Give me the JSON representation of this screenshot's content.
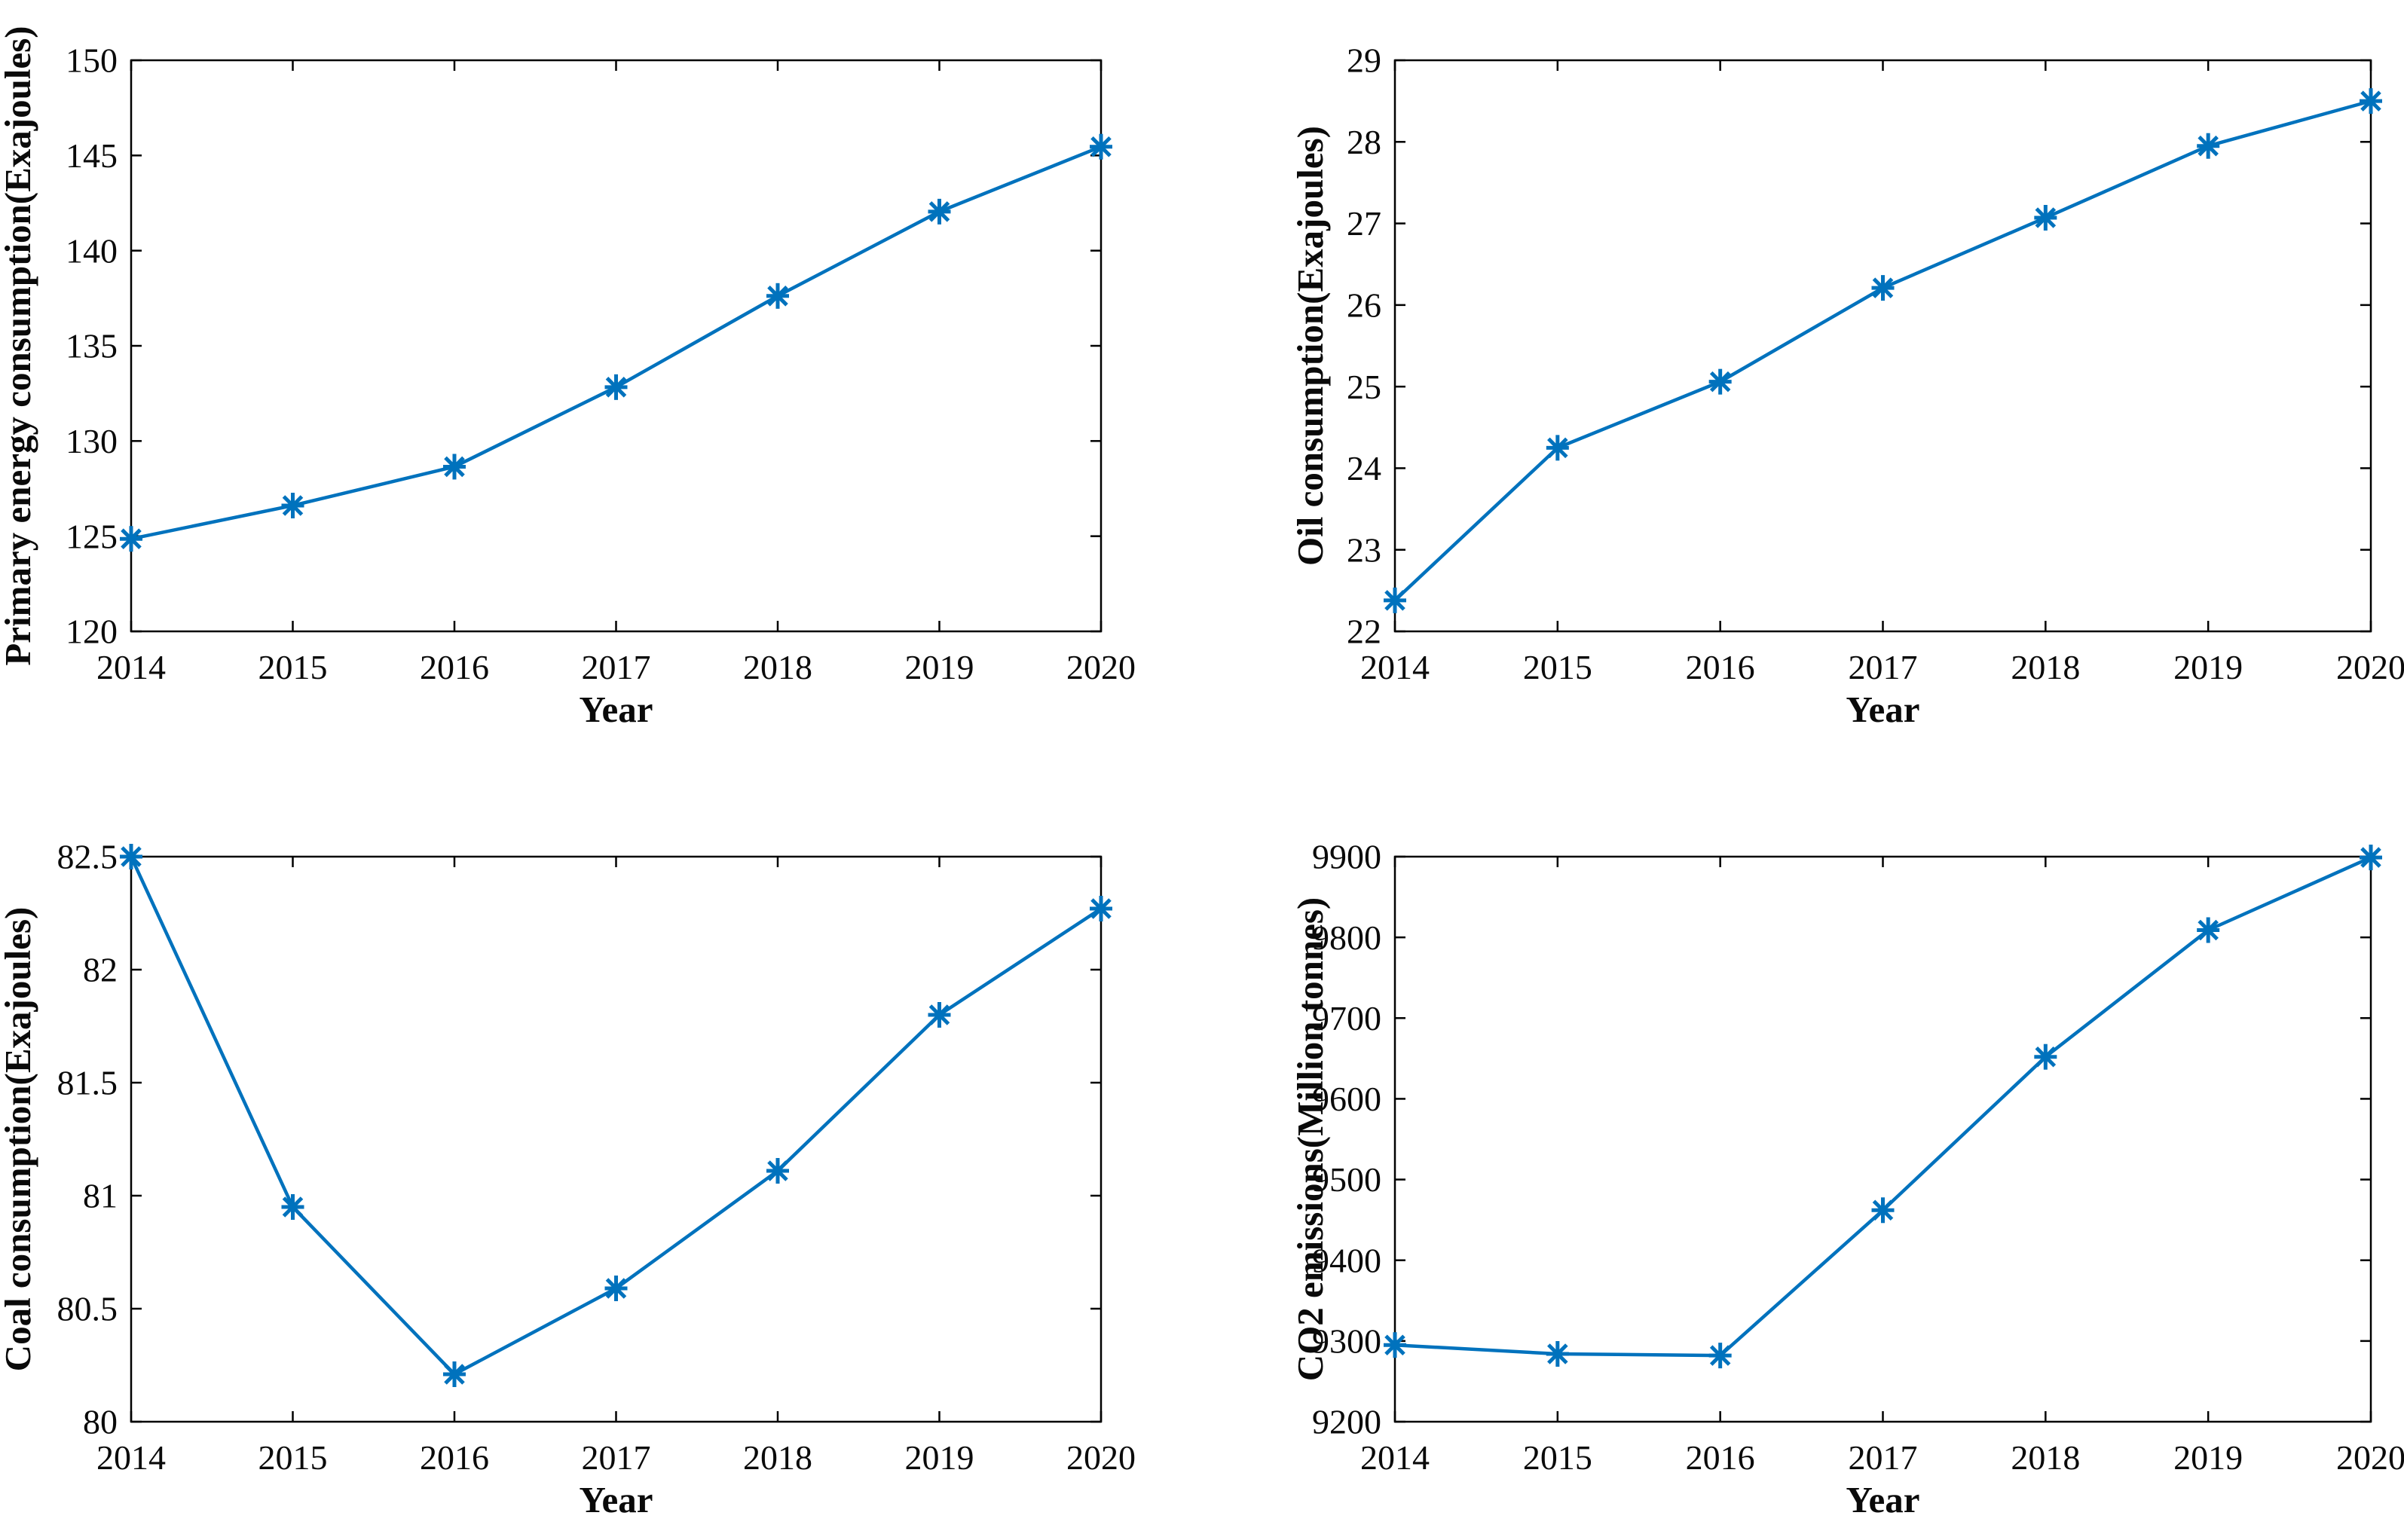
{
  "figure": {
    "layout": "2x2 subplots",
    "background": "#ffffff",
    "axis_color": "#000000",
    "accent_line_color": "#0072BD",
    "marker_style": "asterisk"
  },
  "chart_data": [
    {
      "id": "primary-energy",
      "type": "line",
      "title": "",
      "xlabel": "Year",
      "ylabel": "Primary energy consumption(Exajoules)",
      "x": [
        2014,
        2015,
        2016,
        2017,
        2018,
        2019,
        2020
      ],
      "values": [
        124.86,
        126.61,
        128.65,
        132.83,
        137.62,
        142.05,
        145.46
      ],
      "xticks": [
        2014,
        2015,
        2016,
        2017,
        2018,
        2019,
        2020
      ],
      "yticks": [
        120,
        125,
        130,
        135,
        140,
        145,
        150
      ],
      "xlim": [
        2014,
        2020
      ],
      "ylim": [
        120,
        150
      ],
      "grid": false,
      "legend": null,
      "line_color": "#0072BD",
      "marker": "*"
    },
    {
      "id": "oil",
      "type": "line",
      "title": "",
      "xlabel": "Year",
      "ylabel": "Oil consumption(Exajoules)",
      "x": [
        2014,
        2015,
        2016,
        2017,
        2018,
        2019,
        2020
      ],
      "values": [
        22.38,
        24.25,
        25.06,
        26.21,
        27.07,
        27.95,
        28.5
      ],
      "xticks": [
        2014,
        2015,
        2016,
        2017,
        2018,
        2019,
        2020
      ],
      "yticks": [
        22,
        23,
        24,
        25,
        26,
        27,
        28,
        29
      ],
      "xlim": [
        2014,
        2020
      ],
      "ylim": [
        22,
        29
      ],
      "grid": false,
      "legend": null,
      "line_color": "#0072BD",
      "marker": "*"
    },
    {
      "id": "coal",
      "type": "line",
      "title": "",
      "xlabel": "Year",
      "ylabel": "Coal consumption(Exajoules)",
      "x": [
        2014,
        2015,
        2016,
        2017,
        2018,
        2019,
        2020
      ],
      "values": [
        82.5,
        80.95,
        80.21,
        80.59,
        81.11,
        81.8,
        82.27
      ],
      "xticks": [
        2014,
        2015,
        2016,
        2017,
        2018,
        2019,
        2020
      ],
      "yticks": [
        80,
        80.5,
        81,
        81.5,
        82,
        82.5
      ],
      "xlim": [
        2014,
        2020
      ],
      "ylim": [
        80,
        82.5
      ],
      "grid": false,
      "legend": null,
      "line_color": "#0072BD",
      "marker": "*"
    },
    {
      "id": "co2",
      "type": "line",
      "title": "",
      "xlabel": "Year",
      "ylabel": "CO2 emissions(Million tonnes)",
      "x": [
        2014,
        2015,
        2016,
        2017,
        2018,
        2019,
        2020
      ],
      "values": [
        9295,
        9284,
        9282,
        9462,
        9652,
        9809,
        9899
      ],
      "xticks": [
        2014,
        2015,
        2016,
        2017,
        2018,
        2019,
        2020
      ],
      "yticks": [
        9200,
        9300,
        9400,
        9500,
        9600,
        9700,
        9800,
        9900
      ],
      "xlim": [
        2014,
        2020
      ],
      "ylim": [
        9200,
        9900
      ],
      "grid": false,
      "legend": null,
      "line_color": "#0072BD",
      "marker": "*"
    }
  ]
}
